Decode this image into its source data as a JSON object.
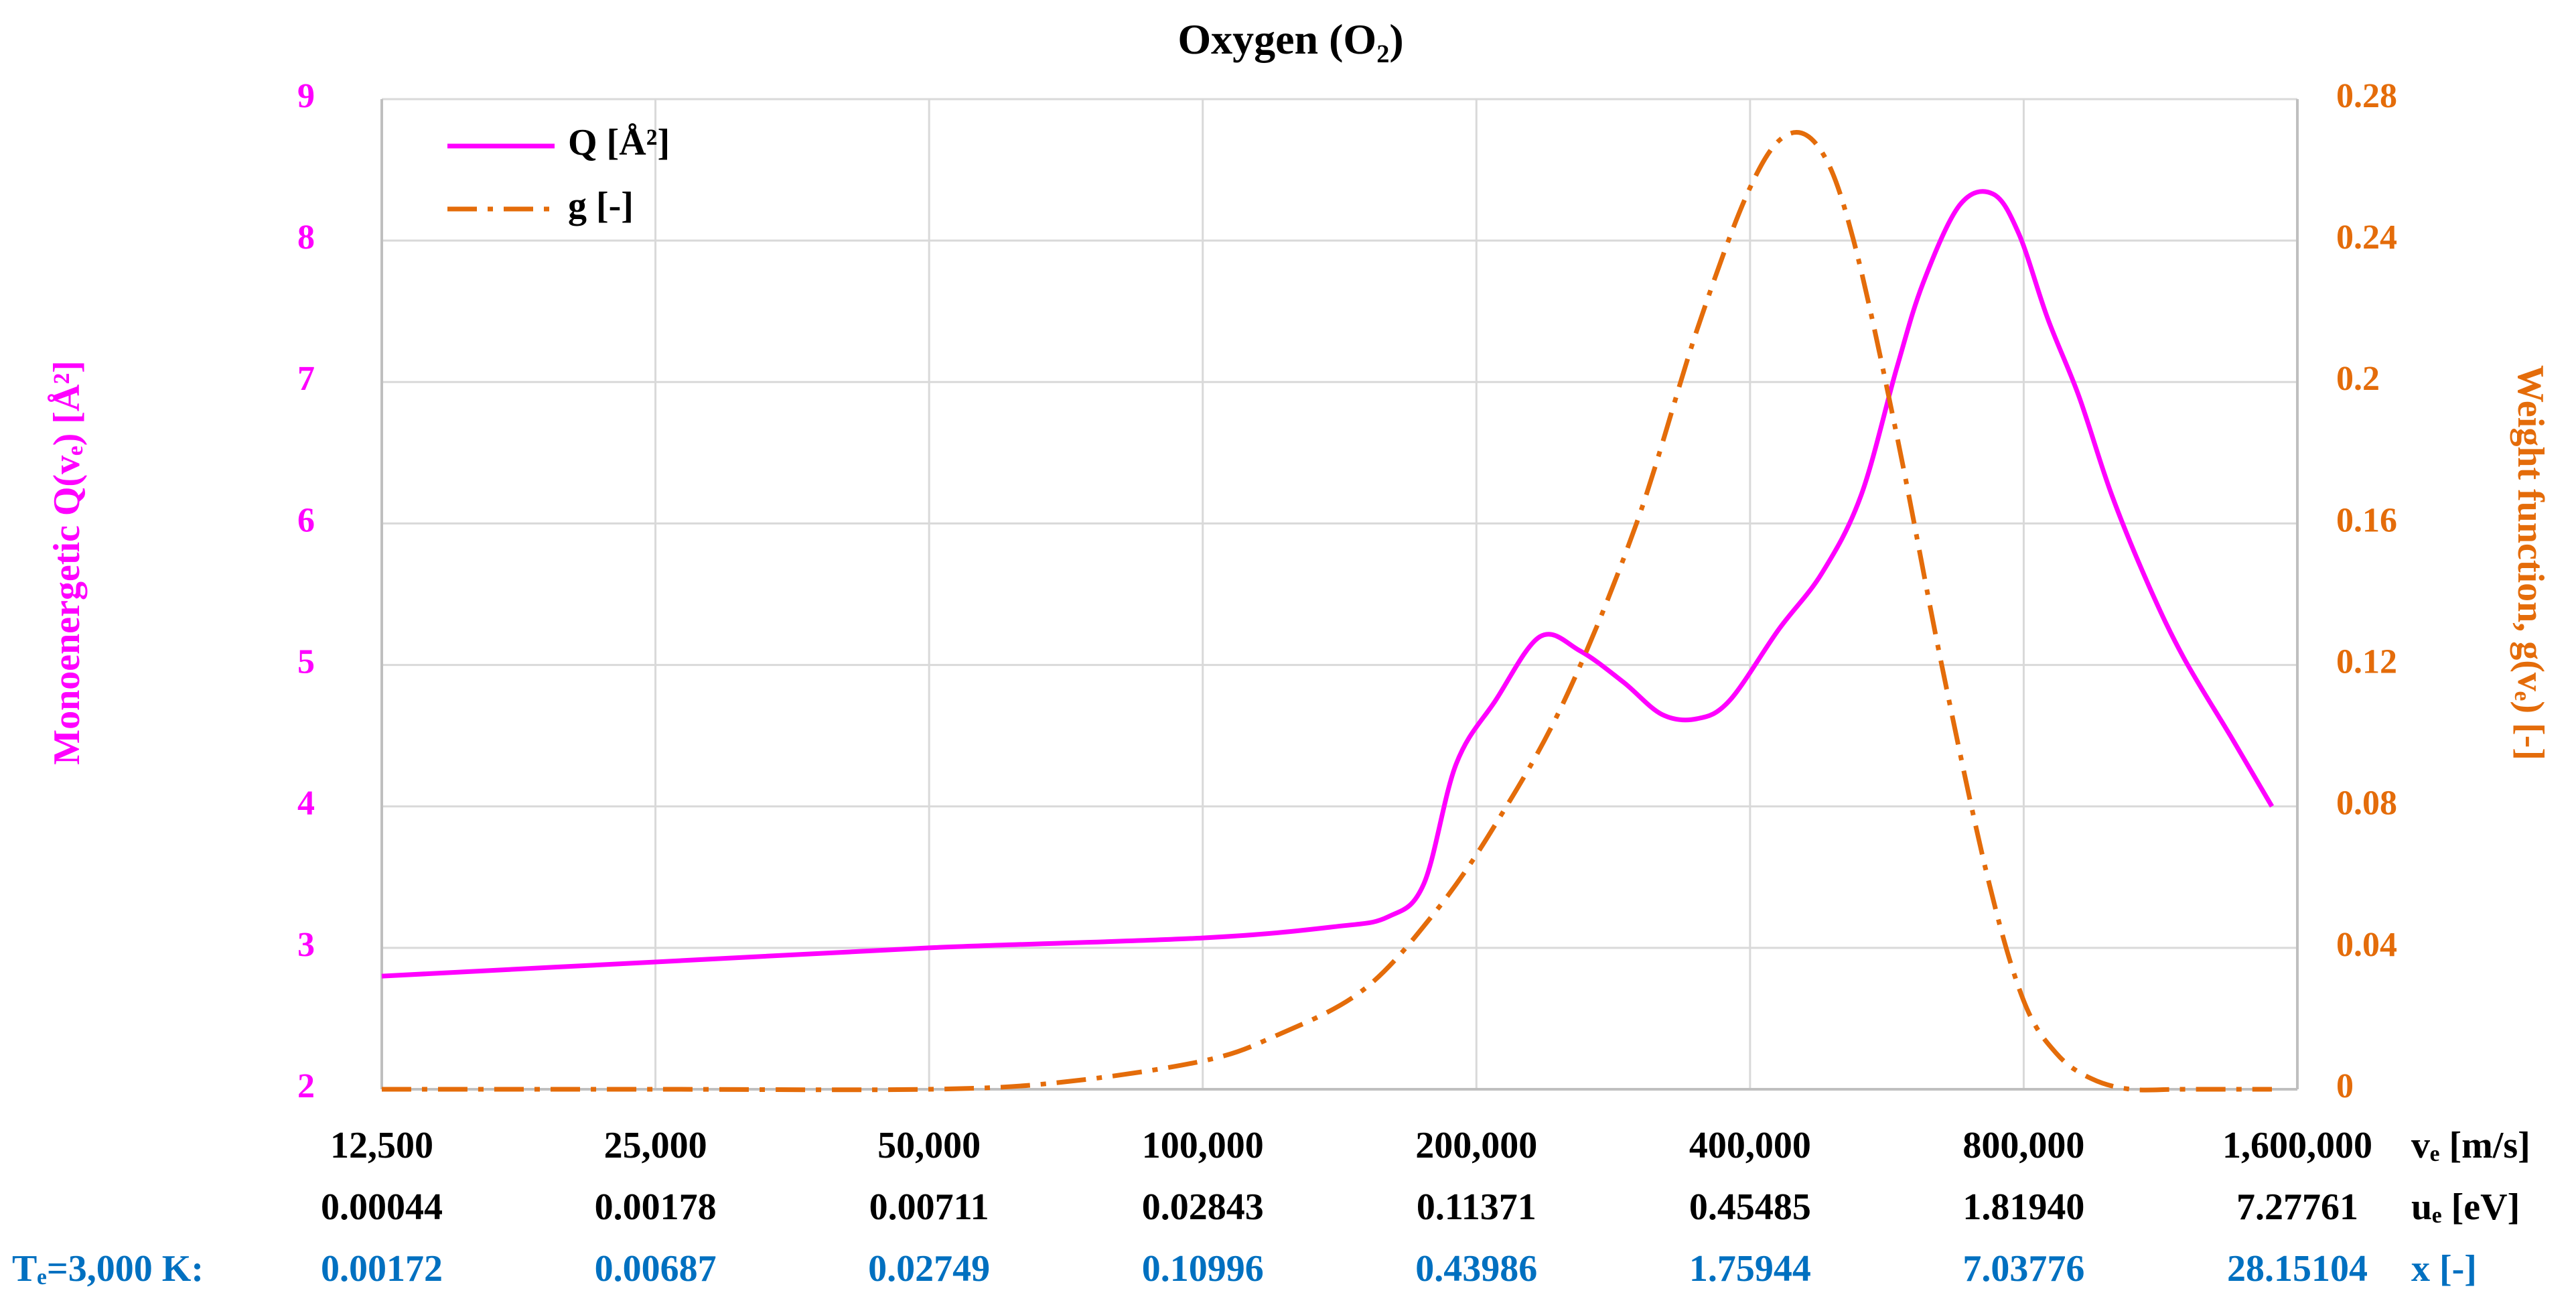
{
  "chart_data": {
    "type": "line",
    "title": "Oxygen (O₂)",
    "ylabel_left": "Monoenergetic Q(vₑ) [Å²]",
    "ylabel_right": "Weight function, g(vₑ) [-]",
    "ylim_left": [
      2,
      9
    ],
    "ylim_right": [
      0,
      0.28
    ],
    "yticks_left": [
      "2",
      "3",
      "4",
      "5",
      "6",
      "7",
      "8",
      "9"
    ],
    "yticks_right": [
      "0",
      "0.04",
      "0.08",
      "0.12",
      "0.16",
      "0.2",
      "0.24",
      "0.28"
    ],
    "x_scale": "log2",
    "x_range": [
      12500,
      1600000
    ],
    "x_rows": [
      {
        "label": "vₑ [m/s]",
        "ticks": [
          "12,500",
          "25,000",
          "50,000",
          "100,000",
          "200,000",
          "400,000",
          "800,000",
          "1,600,000"
        ]
      },
      {
        "label": "uₑ [eV]",
        "ticks": [
          "0.00044",
          "0.00178",
          "0.00711",
          "0.02843",
          "0.11371",
          "0.45485",
          "1.81940",
          "7.27761"
        ]
      },
      {
        "prefix": "Tₑ=3,000 K:",
        "label": "x [-]",
        "ticks": [
          "0.00172",
          "0.00687",
          "0.02749",
          "0.10996",
          "0.43986",
          "1.75944",
          "7.03776",
          "28.15104"
        ]
      }
    ],
    "grid": true,
    "legend_position": "top-left",
    "series": [
      {
        "name": "Q [Å²]",
        "axis": "left",
        "color": "#ff00ff",
        "style": "solid",
        "x": [
          12500,
          25000,
          50000,
          100000,
          140000,
          160000,
          175000,
          190000,
          210000,
          235000,
          260000,
          290000,
          320000,
          350000,
          380000,
          430000,
          480000,
          530000,
          580000,
          620000,
          680000,
          740000,
          790000,
          850000,
          920000,
          1000000,
          1100000,
          1200000,
          1350000,
          1500000
        ],
        "y": [
          2.8,
          2.9,
          3.0,
          3.07,
          3.15,
          3.22,
          3.45,
          4.3,
          4.75,
          5.2,
          5.1,
          4.88,
          4.65,
          4.62,
          4.75,
          5.25,
          5.65,
          6.2,
          7.1,
          7.7,
          8.25,
          8.33,
          8.05,
          7.45,
          6.9,
          6.2,
          5.55,
          5.05,
          4.5,
          4.0
        ]
      },
      {
        "name": "g [-]",
        "axis": "right",
        "color": "#e46c0a",
        "style": "dashdot",
        "x": [
          12500,
          25000,
          50000,
          70000,
          100000,
          120000,
          150000,
          180000,
          210000,
          250000,
          300000,
          350000,
          400000,
          440000,
          480000,
          520000,
          580000,
          650000,
          730000,
          800000,
          870000,
          950000,
          1050000,
          1200000,
          1500000
        ],
        "y": [
          0,
          0,
          0,
          0.002,
          0.008,
          0.015,
          0.028,
          0.05,
          0.075,
          0.11,
          0.16,
          0.215,
          0.255,
          0.27,
          0.265,
          0.24,
          0.185,
          0.12,
          0.06,
          0.025,
          0.01,
          0.003,
          0,
          0,
          0
        ]
      }
    ]
  }
}
